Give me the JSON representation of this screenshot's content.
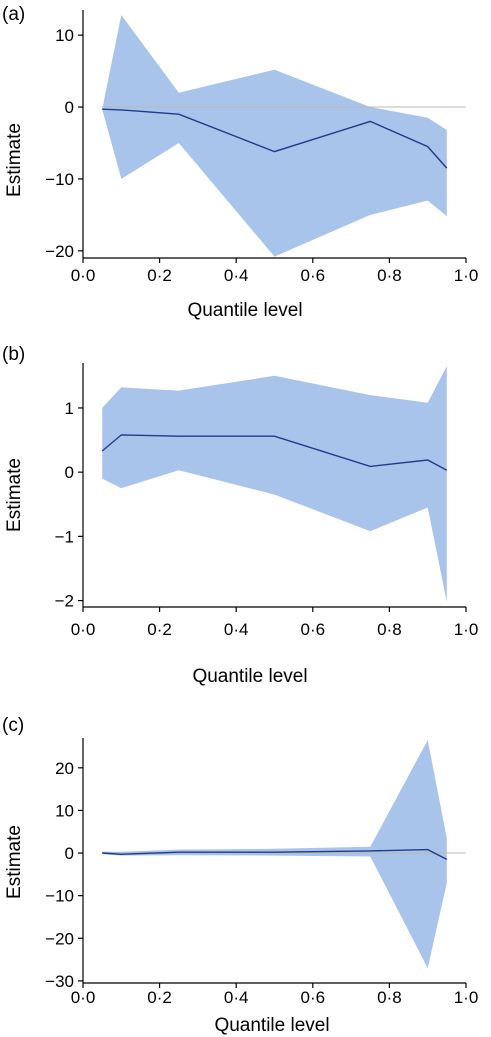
{
  "chart_data": [
    {
      "type": "line",
      "panel_label": "(a)",
      "xlabel": "Quantile level",
      "ylabel": "Estimate",
      "xlim": [
        0.0,
        1.0
      ],
      "ylim": [
        -21,
        13.5
      ],
      "x_ticks": [
        0.0,
        0.2,
        0.4,
        0.6,
        0.8,
        1.0
      ],
      "x_tick_labels": [
        "0·0",
        "0·2",
        "0·4",
        "0·6",
        "0·8",
        "1·0"
      ],
      "y_ticks": [
        -20,
        -10,
        0,
        10
      ],
      "y_tick_labels": [
        "−20",
        "−10",
        "0",
        "10"
      ],
      "x": [
        0.05,
        0.1,
        0.25,
        0.5,
        0.75,
        0.9,
        0.95
      ],
      "series": [
        {
          "values": [
            -0.3,
            -0.4,
            -1.0,
            -6.2,
            -2.0,
            -5.5,
            -8.5
          ]
        }
      ],
      "lower": [
        -0.3,
        -10.0,
        -5.0,
        -20.8,
        -15.0,
        -13.0,
        -15.2
      ],
      "upper": [
        -0.3,
        12.8,
        2.0,
        5.2,
        0.0,
        -1.5,
        -3.2
      ],
      "reference_line": 0
    },
    {
      "type": "line",
      "panel_label": "(b)",
      "xlabel": "Quantile level",
      "ylabel": "Estimate",
      "xlim": [
        0.0,
        1.0
      ],
      "ylim": [
        -2.1,
        1.7
      ],
      "x_ticks": [
        0.0,
        0.2,
        0.4,
        0.6,
        0.8,
        1.0
      ],
      "x_tick_labels": [
        "0·0",
        "0·2",
        "0·4",
        "0·6",
        "0·8",
        "1·0"
      ],
      "y_ticks": [
        -2,
        -1,
        0,
        1
      ],
      "y_tick_labels": [
        "−2",
        "−1",
        "0",
        "1"
      ],
      "x": [
        0.05,
        0.1,
        0.25,
        0.5,
        0.75,
        0.9,
        0.95
      ],
      "series": [
        {
          "values": [
            0.33,
            0.58,
            0.56,
            0.56,
            0.09,
            0.19,
            0.03
          ]
        }
      ],
      "lower": [
        -0.1,
        -0.25,
        0.03,
        -0.35,
        -0.92,
        -0.55,
        -2.02
      ],
      "upper": [
        1.0,
        1.32,
        1.27,
        1.5,
        1.2,
        1.08,
        1.65
      ],
      "reference_line": null
    },
    {
      "type": "line",
      "panel_label": "(c)",
      "xlabel": "Quantile level",
      "ylabel": "Estimate",
      "xlim": [
        0.0,
        1.0
      ],
      "ylim": [
        -30.5,
        27
      ],
      "x_ticks": [
        0.0,
        0.2,
        0.4,
        0.6,
        0.8,
        1.0
      ],
      "x_tick_labels": [
        "0·0",
        "0·2",
        "0·4",
        "0·6",
        "0·8",
        "1·0"
      ],
      "y_ticks": [
        -30,
        -20,
        -10,
        0,
        10,
        20
      ],
      "y_tick_labels": [
        "−30",
        "−20",
        "−10",
        "0",
        "10",
        "20"
      ],
      "x": [
        0.05,
        0.1,
        0.25,
        0.5,
        0.75,
        0.9,
        0.95
      ],
      "series": [
        {
          "values": [
            0.0,
            -0.3,
            0.2,
            0.2,
            0.5,
            0.8,
            -1.5
          ]
        }
      ],
      "lower": [
        -0.3,
        -0.6,
        -0.5,
        -0.6,
        -0.8,
        -27.0,
        -7.0
      ],
      "upper": [
        0.3,
        0.3,
        0.8,
        1.0,
        1.5,
        26.5,
        3.5
      ],
      "reference_line": 0
    }
  ],
  "colors": {
    "band": "#a9c4ea",
    "line": "#1f3c8a",
    "zero": "#b8b8b8"
  }
}
